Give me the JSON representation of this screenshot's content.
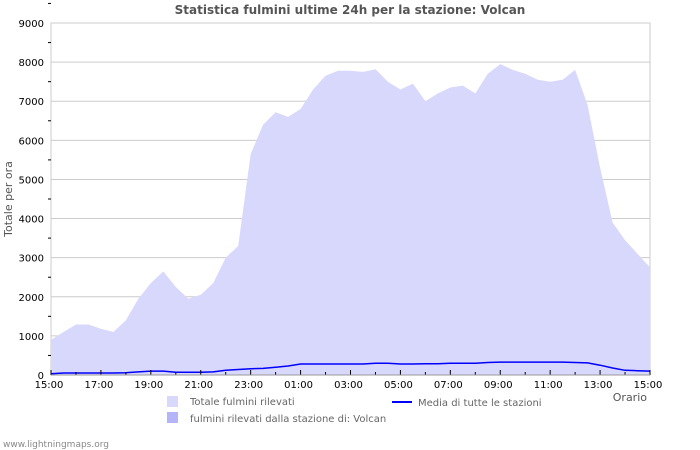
{
  "chart_data": {
    "type": "area",
    "title": "Statistica fulmini ultime 24h per la stazione: Volcan",
    "xlabel": "Orario",
    "ylabel": "Totale per ora",
    "ylim": [
      0,
      9000
    ],
    "yticks": [
      "0",
      "1000",
      "2000",
      "3000",
      "4000",
      "5000",
      "6000",
      "7000",
      "8000",
      "9000"
    ],
    "xticks": [
      "15:00",
      "17:00",
      "19:00",
      "21:00",
      "23:00",
      "01:00",
      "03:00",
      "05:00",
      "07:00",
      "09:00",
      "11:00",
      "13:00",
      "15:00"
    ],
    "x_step_hours": 0.5,
    "series": [
      {
        "name": "Totale fulmini rilevati",
        "color": "#d8d8fc",
        "values": [
          900,
          1100,
          1290,
          1290,
          1180,
          1100,
          1400,
          1950,
          2350,
          2650,
          2250,
          1950,
          2050,
          2350,
          3000,
          3300,
          5650,
          6400,
          6720,
          6600,
          6800,
          7300,
          7650,
          7780,
          7780,
          7750,
          7820,
          7500,
          7300,
          7450,
          7000,
          7200,
          7350,
          7400,
          7200,
          7700,
          7950,
          7800,
          7700,
          7550,
          7500,
          7550,
          7800,
          6900,
          5300,
          3900,
          3450,
          3100,
          2750
        ]
      },
      {
        "name": "fulmini rilevati dalla stazione di: Volcan",
        "color": "#b4b4f8",
        "values": [
          0,
          0,
          0,
          0,
          0,
          0,
          0,
          0,
          0,
          0,
          0,
          0,
          0,
          0,
          0,
          0,
          0,
          0,
          0,
          0,
          0,
          0,
          0,
          0,
          0,
          0,
          0,
          0,
          0,
          0,
          0,
          0,
          0,
          0,
          0,
          0,
          0,
          0,
          0,
          0,
          0,
          0,
          0,
          0,
          0,
          0,
          0,
          0,
          0
        ]
      },
      {
        "name": "Media di tutte le stazioni",
        "color": "#0000ff",
        "values": [
          30,
          50,
          50,
          50,
          50,
          50,
          60,
          80,
          100,
          100,
          70,
          70,
          70,
          80,
          120,
          140,
          160,
          170,
          200,
          230,
          280,
          280,
          280,
          280,
          280,
          280,
          300,
          300,
          280,
          280,
          290,
          290,
          300,
          300,
          300,
          320,
          330,
          330,
          330,
          330,
          330,
          330,
          320,
          310,
          250,
          180,
          120,
          110,
          100
        ]
      }
    ]
  },
  "footer": "www.lightningmaps.org"
}
